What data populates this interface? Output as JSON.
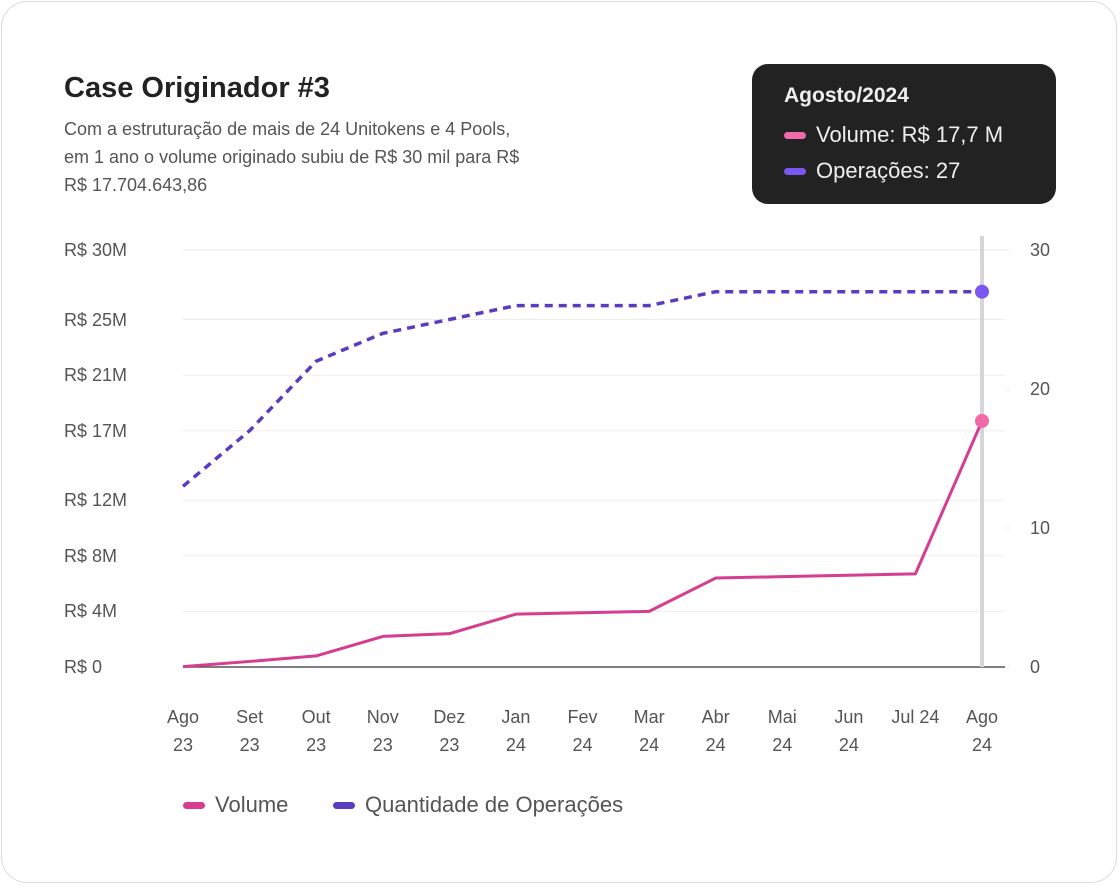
{
  "chart_data": {
    "type": "line",
    "title": "Case Originador #3",
    "subtitle_lines": [
      "Com a estruturação de mais de 24 Unitokens e 4 Pools,",
      "em 1 ano o volume originado subiu de R$ 30 mil para R$",
      "R$ 17.704.643,86"
    ],
    "categories": [
      "Ago 23",
      "Set 23",
      "Out 23",
      "Nov 23",
      "Dez 23",
      "Jan 24",
      "Fev 24",
      "Mar 24",
      "Abr 24",
      "Mai 24",
      "Jun 24",
      "Jul 24",
      "Ago 24"
    ],
    "series": [
      {
        "name": "Volume",
        "color": "#d63d8f",
        "axis": "y",
        "values": [
          0.03,
          0.4,
          0.8,
          2.2,
          2.4,
          3.8,
          3.9,
          4.0,
          6.4,
          6.5,
          6.6,
          6.7,
          17.7
        ]
      },
      {
        "name": "Quantidade de Operações",
        "color": "#5a3cc0",
        "axis": "y2",
        "dashed": true,
        "values": [
          13,
          17,
          22,
          24,
          25,
          26,
          26,
          26,
          27,
          27,
          27,
          27,
          27
        ]
      }
    ],
    "ylim": [
      0,
      30
    ],
    "yticks": [
      {
        "value": 0,
        "label": "R$ 0"
      },
      {
        "value": 4,
        "label": "R$ 4M"
      },
      {
        "value": 8,
        "label": "R$ 8M"
      },
      {
        "value": 12,
        "label": "R$ 12M"
      },
      {
        "value": 17,
        "label": "R$ 17M"
      },
      {
        "value": 21,
        "label": "R$ 21M"
      },
      {
        "value": 25,
        "label": "R$ 25M"
      },
      {
        "value": 30,
        "label": "R$ 30M"
      }
    ],
    "y2lim": [
      0,
      30
    ],
    "y2ticks": [
      0,
      10,
      20,
      30
    ],
    "grid": true,
    "legend": "bottom-left",
    "tooltip": {
      "title": "Agosto/2024",
      "items": [
        {
          "text": "Volume: R$ 17,7 M",
          "color": "#f06aa8"
        },
        {
          "text": "Operações: 27",
          "color": "#7a57f0"
        }
      ]
    }
  }
}
